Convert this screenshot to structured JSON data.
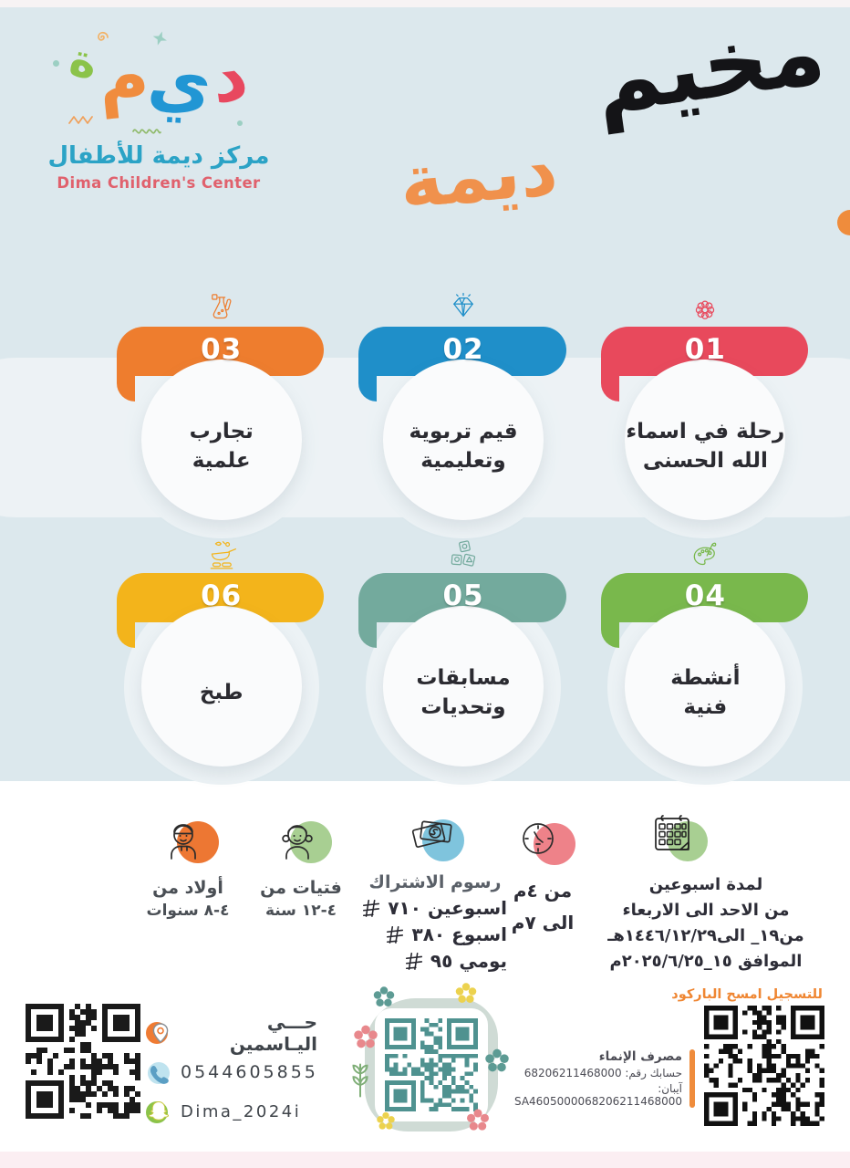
{
  "colors": {
    "background_blue": "#dce8ed",
    "accent_orange": "#f08632",
    "title_orange": "#f0914c",
    "qr_teal": "#4f9290",
    "boy_circle": "#ed7733",
    "girl_circle": "#a8cf92",
    "fees_circle": "#7fc4dd",
    "clock_circle": "#ee8289",
    "calendar_circle": "#a8cf92"
  },
  "brand": {
    "logo_letters": [
      {
        "ch": "د",
        "color": "#e8485f"
      },
      {
        "ch": "ي",
        "color": "#2196d4"
      },
      {
        "ch": "م",
        "color": "#f08c3e"
      },
      {
        "ch": "ة",
        "color": "#8bc34a"
      }
    ],
    "center_name_ar": "مركز ديمة للأطفال",
    "center_name_en": "Dima Children's Center"
  },
  "title": {
    "line1": "مخيم",
    "line2": "ديمة"
  },
  "cards": [
    {
      "num": "01",
      "label": "رحلة في اسماء\nالله الحسنى",
      "color": "#e8495c",
      "icon": "rosette"
    },
    {
      "num": "02",
      "label": "قيم تربوية\nوتعليمية",
      "color": "#1f8fc9",
      "icon": "diamond"
    },
    {
      "num": "03",
      "label": "تجارب\nعلمية",
      "color": "#ee7d2e",
      "icon": "flask"
    },
    {
      "num": "04",
      "label": "أنشطة\nفنية",
      "color": "#79b84c",
      "icon": "palette"
    },
    {
      "num": "05",
      "label": "مسابقات\nوتحديات",
      "color": "#73aa9d",
      "icon": "blocks"
    },
    {
      "num": "06",
      "label": "طبخ",
      "color": "#f3b41b",
      "icon": "cooking"
    }
  ],
  "info": {
    "boys": {
      "line1": "أولاد من",
      "line2": "٤-٨ سنوات"
    },
    "girls": {
      "line1": "فتيات من",
      "line2": "٤-١٢ سنة"
    },
    "fees": {
      "title": "رسوم الاشتراك",
      "items": [
        {
          "label": "اسبوعين",
          "price": "٧١٠"
        },
        {
          "label": "اسبوع",
          "price": "٣٨٠"
        },
        {
          "label": "يومي",
          "price": "٩٥"
        }
      ]
    },
    "time": {
      "line1": "من ٤م",
      "line2": "الى ٧م"
    },
    "schedule": {
      "line1": "لمدة اسبوعين",
      "line2": "من الاحد الى الاربعاء",
      "line3": "من١٩_ الى١٤٤٦/١٢/٢٩هـ",
      "line4": "الموافق ١٥_٢٠٢٥/٦/٢٥م"
    }
  },
  "contact": {
    "location": "حـــي اليـاسمين",
    "phone": "0544605855",
    "snapchat": "Dima_2024i"
  },
  "register": {
    "label": "للتسجيل امسح الباركود"
  },
  "bank": {
    "name": "مصرف الإنماء",
    "account_label": "حسابك رقم: 68206211468000",
    "iban_label": "آيبان: SA4605000068206211468000"
  }
}
